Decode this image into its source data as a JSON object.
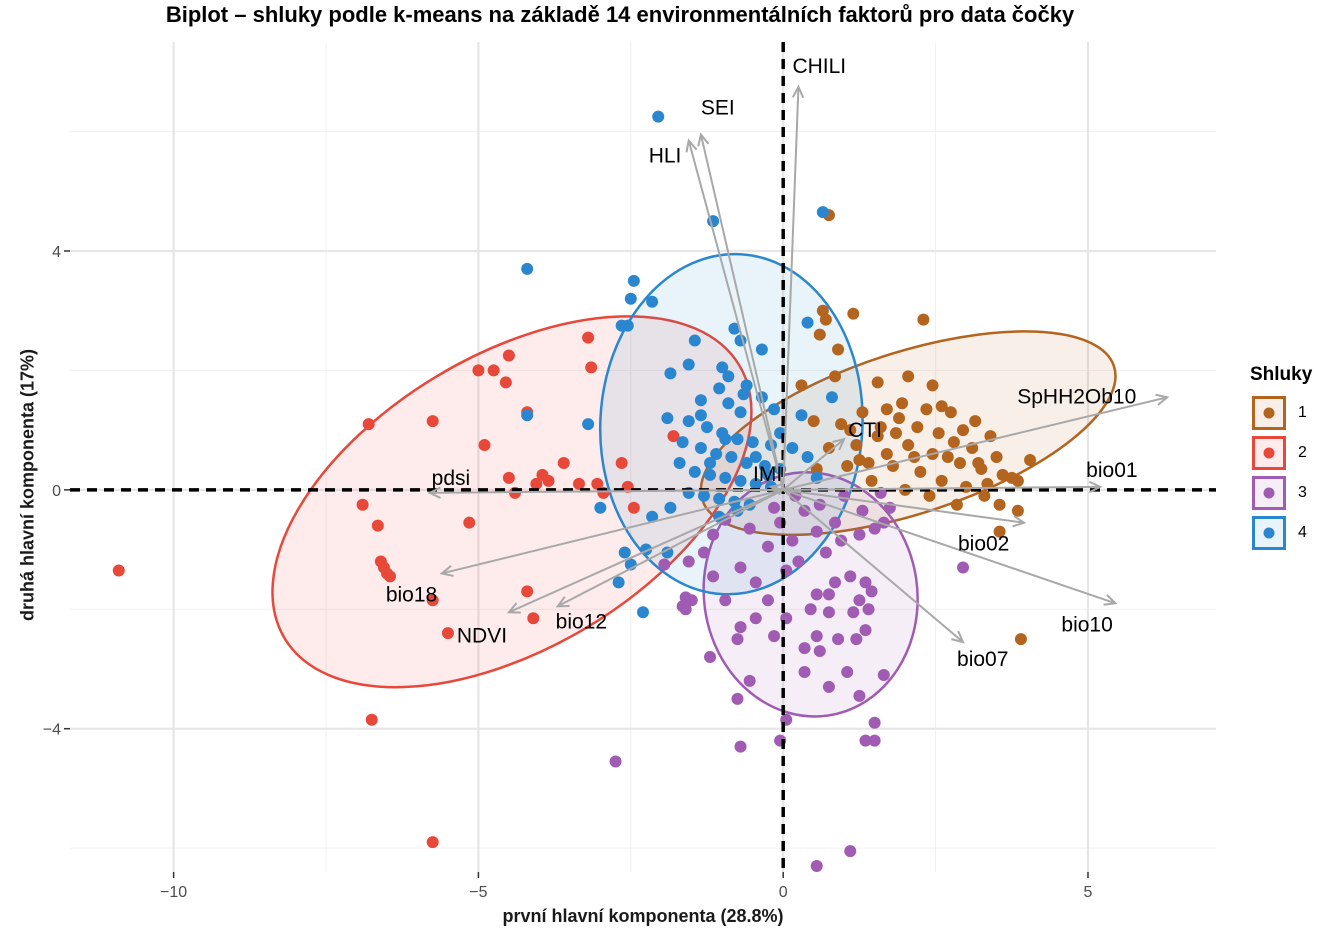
{
  "chart_data": {
    "type": "scatter",
    "title": "Biplot – shluky podle k-means na základě 14 environmentálních faktorů pro data čočky",
    "xlabel": "první hlavní komponenta (28.8%)",
    "ylabel": "druhá hlavní komponenta (17%)",
    "xlim": [
      -11.7,
      7.1
    ],
    "ylim": [
      -6.4,
      7.5
    ],
    "x_ticks": [
      -10,
      -5,
      0,
      5
    ],
    "x_tick_labels": [
      "−10",
      "−5",
      "0",
      "5"
    ],
    "y_ticks": [
      -4,
      0,
      4
    ],
    "y_tick_labels": [
      "−4",
      "0",
      "4"
    ],
    "grid": true,
    "legend": {
      "title": "Shluky",
      "position": "right",
      "entries": [
        "1",
        "2",
        "3",
        "4"
      ]
    },
    "loadings": [
      {
        "name": "CHILI",
        "x": 0.25,
        "y": 6.75
      },
      {
        "name": "SEI",
        "x": -1.35,
        "y": 5.95
      },
      {
        "name": "HLI",
        "x": -1.55,
        "y": 5.85
      },
      {
        "name": "SpHH2Ob10",
        "x": 6.3,
        "y": 1.55
      },
      {
        "name": "CTI",
        "x": 1.0,
        "y": 0.85
      },
      {
        "name": "IMI",
        "x": -0.2,
        "y": 0.05
      },
      {
        "name": "bio01",
        "x": 5.2,
        "y": 0.05
      },
      {
        "name": "bio02",
        "x": 3.95,
        "y": -0.55
      },
      {
        "name": "pdsi",
        "x": -5.8,
        "y": -0.05
      },
      {
        "name": "bio18",
        "x": -5.6,
        "y": -1.4
      },
      {
        "name": "bio12",
        "x": -3.7,
        "y": -1.95
      },
      {
        "name": "NDVI",
        "x": -4.5,
        "y": -2.05
      },
      {
        "name": "bio07",
        "x": 2.95,
        "y": -2.55
      },
      {
        "name": "bio10",
        "x": 5.45,
        "y": -1.9
      }
    ],
    "clusters": [
      {
        "name": "1",
        "color": "#b3651f",
        "ellipse": {
          "cx": 2.05,
          "cy": 0.95,
          "rx": 3.55,
          "ry": 1.35,
          "angle": -18
        },
        "points": [
          [
            0.75,
            4.6
          ],
          [
            0.65,
            3.0
          ],
          [
            1.15,
            2.95
          ],
          [
            2.3,
            2.85
          ],
          [
            0.7,
            2.85
          ],
          [
            0.6,
            2.6
          ],
          [
            0.9,
            2.35
          ],
          [
            1.55,
            1.8
          ],
          [
            2.05,
            1.9
          ],
          [
            2.45,
            1.75
          ],
          [
            1.3,
            1.3
          ],
          [
            1.9,
            1.2
          ],
          [
            2.2,
            1.05
          ],
          [
            2.55,
            0.95
          ],
          [
            2.8,
            0.8
          ],
          [
            3.1,
            0.7
          ],
          [
            3.5,
            0.55
          ],
          [
            1.1,
            1.0
          ],
          [
            1.55,
            0.9
          ],
          [
            2.05,
            0.75
          ],
          [
            2.45,
            0.6
          ],
          [
            2.9,
            0.45
          ],
          [
            3.25,
            0.35
          ],
          [
            3.6,
            0.25
          ],
          [
            3.85,
            0.15
          ],
          [
            4.05,
            0.5
          ],
          [
            0.5,
            1.15
          ],
          [
            0.75,
            0.7
          ],
          [
            1.25,
            0.5
          ],
          [
            1.8,
            0.4
          ],
          [
            2.25,
            0.3
          ],
          [
            2.6,
            0.15
          ],
          [
            3.0,
            0.05
          ],
          [
            3.3,
            -0.1
          ],
          [
            3.55,
            -0.25
          ],
          [
            1.45,
            0.15
          ],
          [
            2.0,
            0.0
          ],
          [
            2.4,
            -0.1
          ],
          [
            2.85,
            -0.25
          ],
          [
            3.85,
            -0.35
          ],
          [
            3.55,
            -0.7
          ],
          [
            3.9,
            -2.5
          ],
          [
            1.95,
            1.45
          ],
          [
            2.75,
            1.3
          ],
          [
            1.7,
            0.6
          ],
          [
            2.35,
            1.35
          ],
          [
            1.2,
            0.75
          ],
          [
            0.95,
            1.1
          ],
          [
            1.6,
            1.05
          ],
          [
            2.6,
            1.4
          ],
          [
            3.15,
            1.15
          ],
          [
            3.4,
            0.9
          ],
          [
            1.85,
            0.95
          ],
          [
            2.7,
            0.55
          ],
          [
            3.75,
            0.2
          ],
          [
            1.4,
            0.45
          ],
          [
            0.3,
            1.75
          ],
          [
            3.2,
            0.45
          ],
          [
            2.15,
            0.55
          ],
          [
            1.05,
            0.4
          ],
          [
            0.55,
            0.35
          ],
          [
            2.95,
            1.0
          ],
          [
            3.35,
            0.1
          ],
          [
            0.85,
            1.9
          ],
          [
            1.7,
            1.35
          ]
        ]
      },
      {
        "name": "2",
        "color": "#e8483a",
        "ellipse": {
          "cx": -4.45,
          "cy": -0.2,
          "rx": 4.35,
          "ry": 2.45,
          "angle": -31
        },
        "points": [
          [
            -10.9,
            -1.35
          ],
          [
            -6.75,
            -3.85
          ],
          [
            -5.75,
            -5.9
          ],
          [
            -6.8,
            1.1
          ],
          [
            -5.75,
            1.15
          ],
          [
            -5.0,
            2.0
          ],
          [
            -4.75,
            2.0
          ],
          [
            -4.55,
            1.8
          ],
          [
            -4.5,
            2.25
          ],
          [
            -3.2,
            2.55
          ],
          [
            -3.15,
            2.05
          ],
          [
            -4.2,
            1.3
          ],
          [
            -4.9,
            0.75
          ],
          [
            -3.6,
            0.45
          ],
          [
            -2.65,
            0.45
          ],
          [
            -4.5,
            0.2
          ],
          [
            -3.85,
            0.15
          ],
          [
            -4.05,
            0.1
          ],
          [
            -3.35,
            0.1
          ],
          [
            -3.05,
            0.1
          ],
          [
            -2.55,
            0.05
          ],
          [
            -2.45,
            -0.3
          ],
          [
            -6.9,
            -0.25
          ],
          [
            -6.65,
            -0.6
          ],
          [
            -5.15,
            -0.55
          ],
          [
            -6.55,
            -1.3
          ],
          [
            -6.5,
            -1.4
          ],
          [
            -6.45,
            -1.45
          ],
          [
            -4.2,
            -1.7
          ],
          [
            -4.1,
            -2.15
          ],
          [
            -5.75,
            -1.85
          ],
          [
            -5.5,
            -2.4
          ],
          [
            -1.8,
            0.9
          ],
          [
            -6.6,
            -1.2
          ],
          [
            -4.4,
            -0.05
          ],
          [
            -3.95,
            0.25
          ],
          [
            -2.95,
            -0.05
          ]
        ]
      },
      {
        "name": "3",
        "color": "#a05bb3",
        "ellipse": {
          "cx": 0.45,
          "cy": -1.75,
          "rx": 1.75,
          "ry": 2.05,
          "angle": -8
        },
        "points": [
          [
            -2.75,
            -4.55
          ],
          [
            -0.7,
            -4.3
          ],
          [
            -0.05,
            -4.2
          ],
          [
            1.35,
            -4.2
          ],
          [
            1.5,
            -4.2
          ],
          [
            1.5,
            -3.9
          ],
          [
            0.05,
            -3.85
          ],
          [
            -0.75,
            -3.5
          ],
          [
            1.25,
            -3.45
          ],
          [
            -1.2,
            -2.8
          ],
          [
            1.65,
            -3.1
          ],
          [
            0.75,
            -3.3
          ],
          [
            -0.55,
            -3.2
          ],
          [
            0.35,
            -3.05
          ],
          [
            1.05,
            -3.05
          ],
          [
            0.6,
            -2.7
          ],
          [
            1.2,
            -2.5
          ],
          [
            0.9,
            -2.5
          ],
          [
            0.55,
            -2.45
          ],
          [
            0.35,
            -2.65
          ],
          [
            -0.7,
            -2.3
          ],
          [
            -0.15,
            -2.45
          ],
          [
            -0.75,
            -2.5
          ],
          [
            0.05,
            -2.15
          ],
          [
            -0.25,
            -1.85
          ],
          [
            0.75,
            -2.05
          ],
          [
            1.15,
            -2.05
          ],
          [
            1.25,
            -1.85
          ],
          [
            1.35,
            -1.55
          ],
          [
            1.45,
            -1.7
          ],
          [
            1.1,
            -1.45
          ],
          [
            0.85,
            -1.55
          ],
          [
            0.55,
            -1.75
          ],
          [
            0.05,
            -1.35
          ],
          [
            -0.45,
            -1.55
          ],
          [
            -0.7,
            -1.3
          ],
          [
            -1.3,
            -1.05
          ],
          [
            -1.55,
            -1.2
          ],
          [
            -1.15,
            -1.45
          ],
          [
            -0.95,
            -1.85
          ],
          [
            -1.6,
            -1.8
          ],
          [
            -1.65,
            -1.95
          ],
          [
            -1.95,
            -1.25
          ],
          [
            0.25,
            -1.2
          ],
          [
            0.7,
            -1.05
          ],
          [
            0.95,
            -0.85
          ],
          [
            1.25,
            -0.75
          ],
          [
            1.5,
            -0.65
          ],
          [
            0.85,
            -0.55
          ],
          [
            0.55,
            -0.7
          ],
          [
            0.15,
            -0.85
          ],
          [
            -0.25,
            -0.95
          ],
          [
            -0.55,
            -0.65
          ],
          [
            -0.95,
            -0.5
          ],
          [
            0.35,
            -0.35
          ],
          [
            0.6,
            -0.25
          ],
          [
            1.3,
            -0.35
          ],
          [
            1.65,
            -0.55
          ],
          [
            2.95,
            -1.3
          ],
          [
            -0.15,
            -0.3
          ],
          [
            -1.15,
            -0.75
          ],
          [
            0.45,
            -2.0
          ],
          [
            -0.45,
            -2.15
          ],
          [
            1.4,
            -2.0
          ],
          [
            1.35,
            -2.35
          ],
          [
            0.75,
            -1.75
          ],
          [
            -0.05,
            -0.55
          ],
          [
            0.2,
            -0.1
          ],
          [
            1.0,
            -0.1
          ],
          [
            1.6,
            -0.05
          ],
          [
            1.75,
            -0.3
          ],
          [
            0.55,
            -6.3
          ],
          [
            1.1,
            -6.05
          ],
          [
            -1.6,
            -2.0
          ],
          [
            -1.5,
            -1.85
          ]
        ]
      },
      {
        "name": "4",
        "color": "#2a87cf",
        "ellipse": {
          "cx": -0.85,
          "cy": 1.1,
          "rx": 2.15,
          "ry": 2.85,
          "angle": 3
        },
        "points": [
          [
            -2.05,
            6.25
          ],
          [
            0.65,
            4.65
          ],
          [
            -1.15,
            4.5
          ],
          [
            -4.2,
            3.7
          ],
          [
            -2.45,
            3.5
          ],
          [
            -2.5,
            3.2
          ],
          [
            -2.15,
            3.15
          ],
          [
            -2.65,
            2.75
          ],
          [
            -2.55,
            2.75
          ],
          [
            0.4,
            2.8
          ],
          [
            -0.8,
            2.7
          ],
          [
            -1.45,
            2.5
          ],
          [
            -0.7,
            2.5
          ],
          [
            -0.35,
            2.35
          ],
          [
            -1.55,
            2.1
          ],
          [
            -1.0,
            2.05
          ],
          [
            -1.85,
            1.95
          ],
          [
            -0.9,
            1.9
          ],
          [
            -0.6,
            1.75
          ],
          [
            -0.35,
            1.55
          ],
          [
            -1.35,
            1.5
          ],
          [
            -0.9,
            1.45
          ],
          [
            -0.7,
            1.3
          ],
          [
            -1.9,
            1.2
          ],
          [
            -1.55,
            1.15
          ],
          [
            -1.25,
            1.05
          ],
          [
            -1.0,
            0.95
          ],
          [
            -0.75,
            0.85
          ],
          [
            -0.5,
            0.8
          ],
          [
            -0.2,
            0.75
          ],
          [
            0.15,
            0.7
          ],
          [
            -1.65,
            0.8
          ],
          [
            -1.35,
            0.7
          ],
          [
            -1.1,
            0.6
          ],
          [
            -0.85,
            0.55
          ],
          [
            -0.6,
            0.45
          ],
          [
            -0.3,
            0.4
          ],
          [
            -0.05,
            0.35
          ],
          [
            -1.7,
            0.45
          ],
          [
            -1.45,
            0.3
          ],
          [
            -1.2,
            0.25
          ],
          [
            -0.95,
            0.2
          ],
          [
            -0.7,
            0.15
          ],
          [
            -0.45,
            0.1
          ],
          [
            -0.2,
            0.05
          ],
          [
            -1.55,
            -0.05
          ],
          [
            -1.3,
            -0.1
          ],
          [
            -1.05,
            -0.15
          ],
          [
            -0.8,
            -0.2
          ],
          [
            -0.55,
            -0.25
          ],
          [
            -1.85,
            -0.3
          ],
          [
            -1.05,
            -0.45
          ],
          [
            -0.75,
            -0.35
          ],
          [
            -2.15,
            -0.45
          ],
          [
            -3.0,
            -0.3
          ],
          [
            -2.6,
            -1.05
          ],
          [
            -2.5,
            -1.25
          ],
          [
            -2.7,
            -1.55
          ],
          [
            -2.25,
            -1.0
          ],
          [
            -1.9,
            -1.05
          ],
          [
            -2.3,
            -2.05
          ],
          [
            -4.2,
            1.25
          ],
          [
            -3.2,
            1.1
          ],
          [
            -0.05,
            0.95
          ],
          [
            0.4,
            0.55
          ],
          [
            0.8,
            1.55
          ],
          [
            0.3,
            1.25
          ],
          [
            0.55,
            0.2
          ],
          [
            -1.05,
            1.7
          ],
          [
            -0.15,
            1.35
          ],
          [
            -0.45,
            0.55
          ],
          [
            -1.35,
            1.25
          ],
          [
            -0.65,
            1.6
          ],
          [
            -0.95,
            0.85
          ],
          [
            -1.2,
            0.45
          ],
          [
            -0.25,
            0.25
          ]
        ]
      }
    ]
  }
}
